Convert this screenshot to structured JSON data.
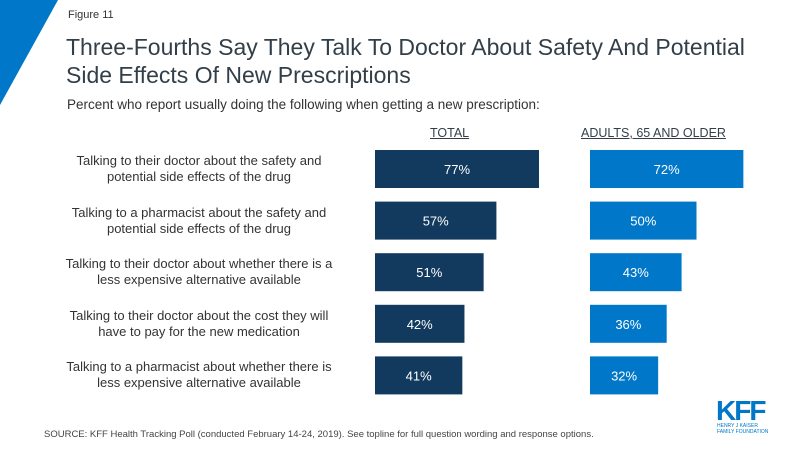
{
  "figure_label": "Figure 11",
  "title": "Three-Fourths Say They Talk To Doctor About Safety And Potential Side Effects Of New Prescriptions",
  "subtitle": "Percent who report usually doing the following when getting a new prescription:",
  "source": "SOURCE: KFF Health Tracking Poll (conducted February 14-24, 2019). See topline for full question wording and response options.",
  "logo": {
    "name": "KFF",
    "line1": "HENRY J KAISER",
    "line2": "FAMILY FOUNDATION"
  },
  "colors": {
    "total": "#123a5e",
    "older": "#0077c8",
    "accent": "#0077c8"
  },
  "chart_data": {
    "type": "bar",
    "orientation": "horizontal",
    "title": "Three-Fourths Say They Talk To Doctor About Safety And Potential Side Effects Of New Prescriptions",
    "categories": [
      [
        "Talking to their doctor about the safety and",
        "potential side effects of the drug"
      ],
      [
        "Talking to a pharmacist about the safety and",
        "potential side effects of the drug"
      ],
      [
        "Talking to their doctor about whether there is a",
        "less expensive alternative available"
      ],
      [
        "Talking to their doctor about the cost they will",
        "have to pay for the new medication"
      ],
      [
        "Talking to a pharmacist about whether there is",
        "less expensive alternative available"
      ]
    ],
    "series": [
      {
        "name": "TOTAL",
        "values": [
          77,
          57,
          51,
          42,
          41
        ],
        "labels": [
          "77%",
          "57%",
          "51%",
          "42%",
          "41%"
        ]
      },
      {
        "name": "ADULTS, 65 AND OLDER",
        "values": [
          72,
          50,
          43,
          36,
          32
        ],
        "labels": [
          "72%",
          "50%",
          "43%",
          "36%",
          "32%"
        ]
      }
    ],
    "xlim": [
      0,
      100
    ],
    "grid": false,
    "legend": "column headers above bars"
  }
}
